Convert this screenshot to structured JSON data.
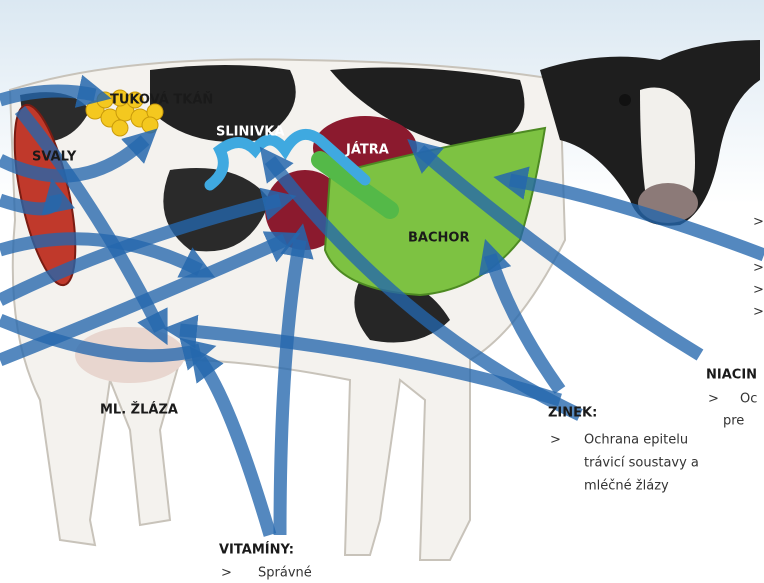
{
  "labels": {
    "fat": "TUKOVÁ TKÁŇ",
    "muscle": "SVALY",
    "pancreas": "SLINIVKA",
    "liver": "JÁTRA",
    "rumen": "BACHOR",
    "udder": "ML. ŽLÁZA"
  },
  "notes": [
    {
      "title": "ZINEK:",
      "bullet": ">",
      "lines": [
        "Ochrana epitelu",
        "trávicí soustavy a",
        "mléčné žlázy"
      ]
    },
    {
      "title": "VITAMÍNY:",
      "bullet": ">",
      "lines": [
        "Správné"
      ]
    },
    {
      "title": "NIACIN",
      "bullet": ">",
      "lines": [
        "Oc",
        "pre"
      ]
    }
  ],
  "edge_bullets": [
    ">",
    ">",
    ">",
    ">"
  ]
}
